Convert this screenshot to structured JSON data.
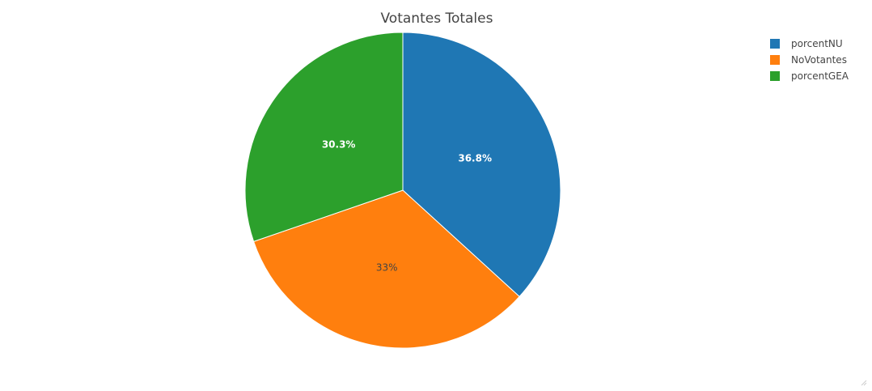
{
  "chart_data": {
    "type": "pie",
    "title": "Votantes Totales",
    "categories": [
      "porcentNU",
      "NoVotantes",
      "porcentGEA"
    ],
    "values": [
      36.8,
      33.0,
      30.3
    ],
    "labels": [
      "36.8%",
      "33%",
      "30.3%"
    ],
    "colors": [
      "#1f77b4",
      "#ff7f0e",
      "#2ca02c"
    ],
    "label_colors": [
      "#ffffff",
      "#444444",
      "#ffffff"
    ],
    "label_bold": [
      true,
      false,
      true
    ],
    "direction": "clockwise",
    "start": "top",
    "legend": {
      "position": "top-right",
      "entries": [
        "porcentNU",
        "NoVotantes",
        "porcentGEA"
      ]
    }
  }
}
